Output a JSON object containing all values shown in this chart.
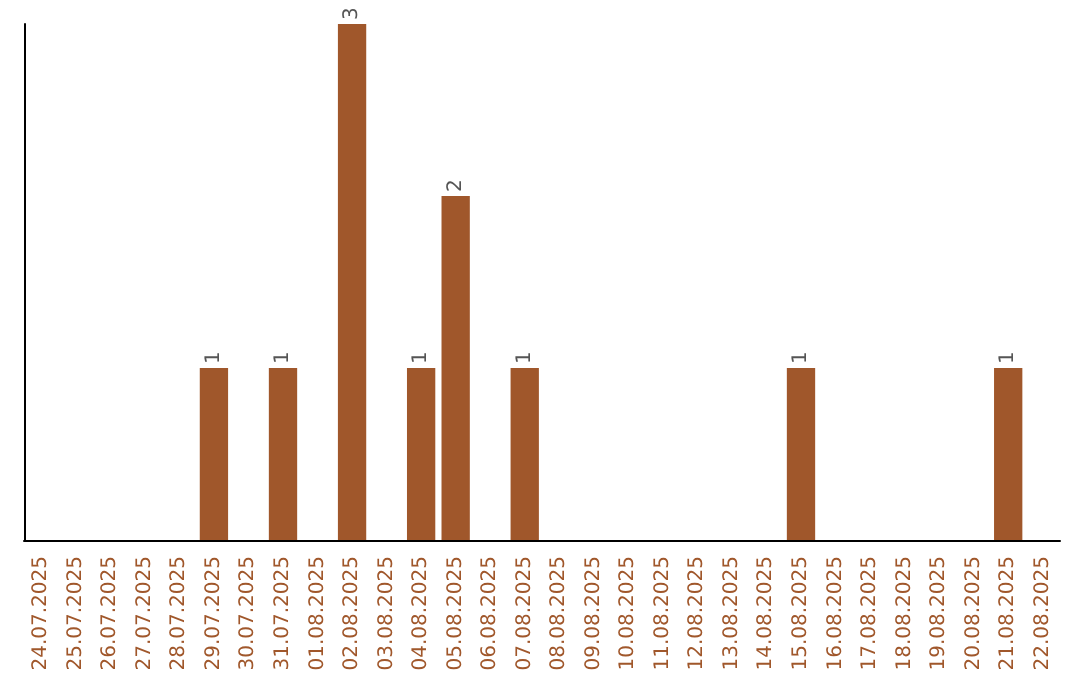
{
  "chart_data": {
    "type": "bar",
    "categories": [
      "24.07.2025",
      "25.07.2025",
      "26.07.2025",
      "27.07.2025",
      "28.07.2025",
      "29.07.2025",
      "30.07.2025",
      "31.07.2025",
      "01.08.2025",
      "02.08.2025",
      "03.08.2025",
      "04.08.2025",
      "05.08.2025",
      "06.08.2025",
      "07.08.2025",
      "08.08.2025",
      "09.08.2025",
      "10.08.2025",
      "11.08.2025",
      "12.08.2025",
      "13.08.2025",
      "14.08.2025",
      "15.08.2025",
      "16.08.2025",
      "17.08.2025",
      "18.08.2025",
      "19.08.2025",
      "20.08.2025",
      "21.08.2025",
      "22.08.2025"
    ],
    "values": [
      0,
      0,
      0,
      0,
      0,
      1,
      0,
      1,
      0,
      3,
      0,
      1,
      2,
      0,
      1,
      0,
      0,
      0,
      0,
      0,
      0,
      0,
      1,
      0,
      0,
      0,
      0,
      0,
      1,
      0
    ],
    "value_labels": [
      null,
      null,
      null,
      null,
      null,
      "1",
      null,
      "1",
      null,
      "3",
      null,
      "1",
      "2",
      null,
      "1",
      null,
      null,
      null,
      null,
      null,
      null,
      null,
      "1",
      null,
      null,
      null,
      null,
      null,
      "1",
      null
    ],
    "color": "#a0572b",
    "ylim": [
      0,
      3
    ],
    "tick_labels": "x"
  }
}
